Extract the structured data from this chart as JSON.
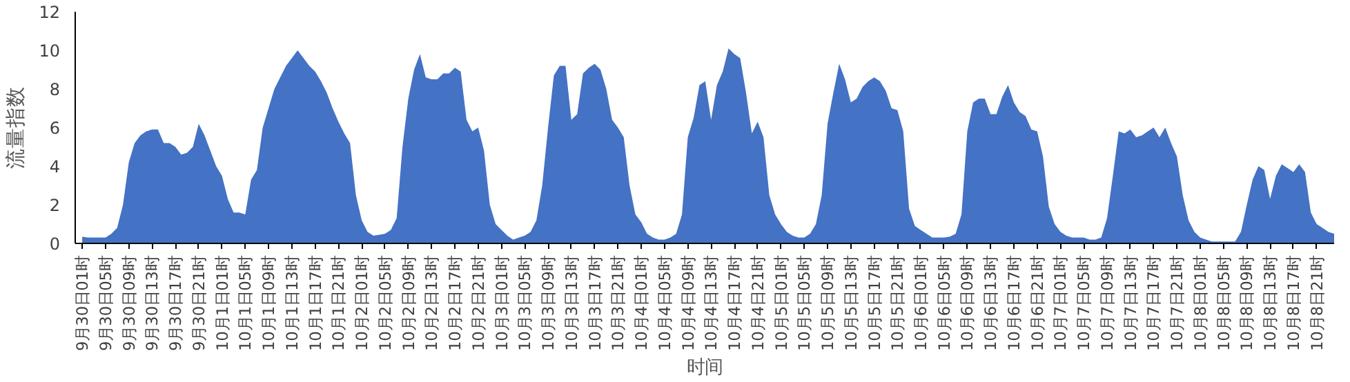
{
  "chart_data": {
    "type": "area",
    "xlabel": "时间",
    "ylabel": "流量指数",
    "ylim": [
      0,
      12
    ],
    "yticks": [
      0,
      2,
      4,
      6,
      8,
      10,
      12
    ],
    "grid": false,
    "categories": [
      "9月30日01时",
      null,
      null,
      null,
      "9月30日05时",
      null,
      null,
      null,
      "9月30日09时",
      null,
      null,
      null,
      "9月30日13时",
      null,
      null,
      null,
      "9月30日17时",
      null,
      null,
      null,
      "9月30日21时",
      null,
      null,
      null,
      "10月1日01时",
      null,
      null,
      null,
      "10月1日05时",
      null,
      null,
      null,
      "10月1日09时",
      null,
      null,
      null,
      "10月1日13时",
      null,
      null,
      null,
      "10月1日17时",
      null,
      null,
      null,
      "10月1日21时",
      null,
      null,
      null,
      "10月2日01时",
      null,
      null,
      null,
      "10月2日05时",
      null,
      null,
      null,
      "10月2日09时",
      null,
      null,
      null,
      "10月2日13时",
      null,
      null,
      null,
      "10月2日17时",
      null,
      null,
      null,
      "10月2日21时",
      null,
      null,
      null,
      "10月3日01时",
      null,
      null,
      null,
      "10月3日05时",
      null,
      null,
      null,
      "10月3日09时",
      null,
      null,
      null,
      "10月3日13时",
      null,
      null,
      null,
      "10月3日17时",
      null,
      null,
      null,
      "10月3日21时",
      null,
      null,
      null,
      "10月4日01时",
      null,
      null,
      null,
      "10月4日05时",
      null,
      null,
      null,
      "10月4日09时",
      null,
      null,
      null,
      "10月4日13时",
      null,
      null,
      null,
      "10月4日17时",
      null,
      null,
      null,
      "10月4日21时",
      null,
      null,
      null,
      "10月5日01时",
      null,
      null,
      null,
      "10月5日05时",
      null,
      null,
      null,
      "10月5日09时",
      null,
      null,
      null,
      "10月5日13时",
      null,
      null,
      null,
      "10月5日17时",
      null,
      null,
      null,
      "10月5日21时",
      null,
      null,
      null,
      "10月6日01时",
      null,
      null,
      null,
      "10月6日05时",
      null,
      null,
      null,
      "10月6日09时",
      null,
      null,
      null,
      "10月6日13时",
      null,
      null,
      null,
      "10月6日17时",
      null,
      null,
      null,
      "10月6日21时",
      null,
      null,
      null,
      "10月7日01时",
      null,
      null,
      null,
      "10月7日05时",
      null,
      null,
      null,
      "10月7日09时",
      null,
      null,
      null,
      "10月7日13时",
      null,
      null,
      null,
      "10月7日17时",
      null,
      null,
      null,
      "10月7日21时",
      null,
      null,
      null,
      "10月8日01时",
      null,
      null,
      null,
      "10月8日05时",
      null,
      null,
      null,
      "10月8日09时",
      null,
      null,
      null,
      "10月8日13时",
      null,
      null,
      null,
      "10月8日17时",
      null,
      null,
      null,
      "10月8日21时",
      null,
      null,
      null
    ],
    "series": [
      {
        "color": "#4472c4",
        "values": [
          0.35,
          0.3,
          0.3,
          0.3,
          0.3,
          0.5,
          0.8,
          2,
          4.2,
          5.2,
          5.6,
          5.8,
          5.9,
          5.9,
          5.2,
          5.2,
          5.0,
          4.6,
          4.7,
          5.0,
          6.2,
          5.6,
          4.8,
          4.0,
          3.5,
          2.3,
          1.6,
          1.6,
          1.5,
          3.3,
          3.8,
          6.0,
          7.0,
          8.0,
          8.6,
          9.2,
          9.6,
          10.0,
          9.6,
          9.2,
          8.9,
          8.4,
          7.8,
          7.0,
          6.3,
          5.7,
          5.2,
          2.5,
          1.2,
          0.6,
          0.4,
          0.45,
          0.5,
          0.7,
          1.3,
          5.0,
          7.5,
          9.0,
          9.8,
          8.6,
          8.5,
          8.5,
          8.8,
          8.8,
          9.1,
          8.9,
          6.4,
          5.8,
          6.0,
          4.8,
          2.0,
          1.0,
          0.7,
          0.4,
          0.2,
          0.3,
          0.4,
          0.6,
          1.2,
          3.0,
          6.0,
          8.7,
          9.2,
          9.2,
          6.4,
          6.7,
          8.8,
          9.1,
          9.3,
          9.0,
          8.0,
          6.4,
          6.0,
          5.5,
          3.0,
          1.5,
          1.1,
          0.5,
          0.3,
          0.2,
          0.2,
          0.3,
          0.5,
          1.5,
          5.5,
          6.5,
          8.2,
          8.4,
          6.4,
          8.2,
          8.9,
          10.1,
          9.8,
          9.6,
          7.8,
          5.7,
          6.3,
          5.5,
          2.5,
          1.5,
          1.0,
          0.6,
          0.4,
          0.3,
          0.3,
          0.5,
          1.0,
          2.5,
          6.2,
          7.8,
          9.3,
          8.5,
          7.3,
          7.5,
          8.1,
          8.4,
          8.6,
          8.4,
          7.9,
          7.0,
          6.9,
          5.8,
          1.8,
          0.9,
          0.7,
          0.5,
          0.3,
          0.3,
          0.3,
          0.35,
          0.5,
          1.5,
          5.8,
          7.3,
          7.5,
          7.5,
          6.7,
          6.7,
          7.6,
          8.2,
          7.3,
          6.8,
          6.6,
          5.9,
          5.8,
          4.5,
          1.9,
          1.0,
          0.6,
          0.4,
          0.3,
          0.3,
          0.3,
          0.2,
          0.2,
          0.3,
          1.3,
          3.5,
          5.8,
          5.7,
          5.9,
          5.5,
          5.6,
          5.8,
          6.0,
          5.5,
          6.0,
          5.2,
          4.5,
          2.5,
          1.2,
          0.6,
          0.3,
          0.2,
          0.1,
          0.1,
          0.1,
          0.1,
          0.1,
          0.6,
          2.0,
          3.3,
          4.0,
          3.8,
          2.3,
          3.5,
          4.1,
          3.9,
          3.7,
          4.1,
          3.7,
          1.6,
          1.0,
          0.8,
          0.6,
          0.5
        ]
      }
    ]
  }
}
